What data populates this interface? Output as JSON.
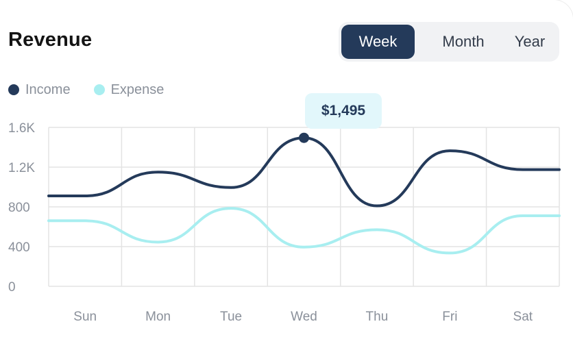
{
  "card": {
    "title": "Revenue"
  },
  "range_selector": {
    "options": [
      "Week",
      "Month",
      "Year"
    ],
    "selected": "Week"
  },
  "tooltip": {
    "text": "$1,495"
  },
  "colors": {
    "income": "#243a5a",
    "expense": "#a8eef0",
    "grid": "#e3e3e3"
  },
  "chart_data": {
    "type": "line",
    "title": "Revenue",
    "categories": [
      "Sun",
      "Mon",
      "Tue",
      "Wed",
      "Thu",
      "Fri",
      "Sat"
    ],
    "y_ticks": [
      "0",
      "400",
      "800",
      "1.2K",
      "1.6K"
    ],
    "ylim": [
      0,
      1600
    ],
    "grid": true,
    "legend": "top-left",
    "series": [
      {
        "name": "Income",
        "values": [
          910,
          1150,
          995,
          1495,
          810,
          1365,
          1175
        ]
      },
      {
        "name": "Expense",
        "values": [
          660,
          445,
          785,
          395,
          570,
          335,
          710
        ]
      }
    ],
    "highlight": {
      "series": "Income",
      "category": "Wed",
      "value": 1495
    }
  }
}
